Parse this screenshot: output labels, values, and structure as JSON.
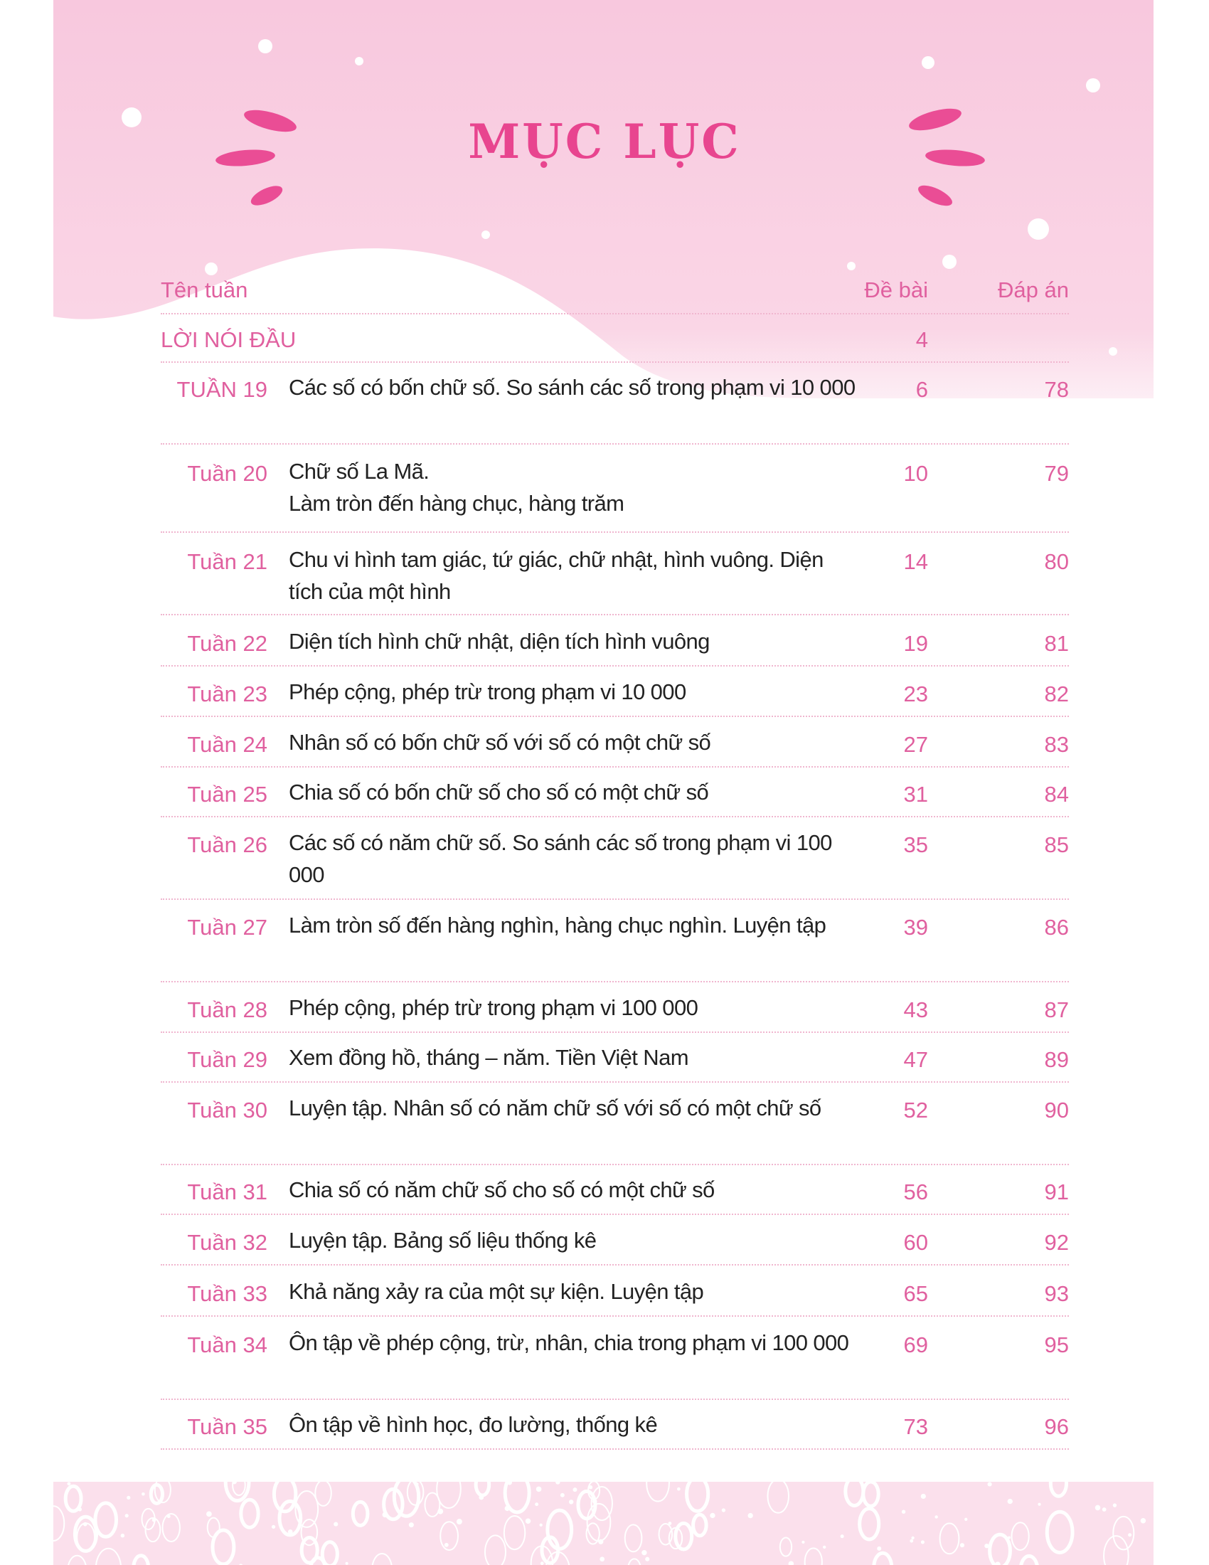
{
  "title": "MỤC LỤC",
  "colors": {
    "accent": "#e8458f",
    "header_bg": "#f9cfe3",
    "footer_bg": "#fbe0ec"
  },
  "columns": {
    "name": "Tên tuần",
    "exercise": "Đề bài",
    "answer": "Đáp án"
  },
  "intro": {
    "label": "LỜI NÓI ĐẦU",
    "exercise": "4"
  },
  "rows": [
    {
      "label": "TUẦN 19",
      "text": "Các số có bốn chữ số. So sánh các số trong phạm vi 10 000",
      "exercise": "6",
      "answer": "78"
    },
    {
      "label": "Tuần 20",
      "text": "Chữ số La Mã.\nLàm tròn đến hàng chục, hàng trăm",
      "exercise": "10",
      "answer": "79"
    },
    {
      "label": "Tuần 21",
      "text": "Chu vi hình tam giác, tứ giác, chữ nhật, hình vuông. Diện tích của một hình",
      "exercise": "14",
      "answer": "80"
    },
    {
      "label": "Tuần 22",
      "text": "Diện tích hình chữ nhật, diện tích hình vuông",
      "exercise": "19",
      "answer": "81"
    },
    {
      "label": "Tuần 23",
      "text": "Phép cộng, phép trừ trong phạm vi 10 000",
      "exercise": "23",
      "answer": "82"
    },
    {
      "label": "Tuần 24",
      "text": "Nhân số có bốn chữ số với số có một chữ số",
      "exercise": "27",
      "answer": "83"
    },
    {
      "label": "Tuần 25",
      "text": "Chia số có bốn chữ số cho số có một chữ số",
      "exercise": "31",
      "answer": "84"
    },
    {
      "label": "Tuần 26",
      "text": "Các số có năm chữ số. So sánh các số trong phạm vi 100 000",
      "exercise": "35",
      "answer": "85"
    },
    {
      "label": "Tuần 27",
      "text": "Làm tròn số đến hàng nghìn, hàng chục nghìn. Luyện tập",
      "exercise": "39",
      "answer": "86"
    },
    {
      "label": "Tuần 28",
      "text": "Phép cộng, phép trừ trong phạm vi 100 000",
      "exercise": "43",
      "answer": "87"
    },
    {
      "label": "Tuần 29",
      "text": "Xem đồng hồ, tháng – năm. Tiền Việt Nam",
      "exercise": "47",
      "answer": "89"
    },
    {
      "label": "Tuần 30",
      "text": "Luyện tập. Nhân số có năm chữ số với số có một chữ số",
      "exercise": "52",
      "answer": "90"
    },
    {
      "label": "Tuần 31",
      "text": "Chia số có năm chữ số cho số có một chữ số",
      "exercise": "56",
      "answer": "91"
    },
    {
      "label": "Tuần 32",
      "text": "Luyện tập. Bảng số liệu thống kê",
      "exercise": "60",
      "answer": "92"
    },
    {
      "label": "Tuần 33",
      "text": "Khả năng xảy ra của một sự kiện. Luyện tập",
      "exercise": "65",
      "answer": "93"
    },
    {
      "label": "Tuần 34",
      "text": "Ôn tập về phép cộng, trừ, nhân, chia trong phạm vi 100 000",
      "exercise": "69",
      "answer": "95"
    },
    {
      "label": "Tuần 35",
      "text": "Ôn tập về hình học, đo lường, thống kê",
      "exercise": "73",
      "answer": "96"
    }
  ]
}
